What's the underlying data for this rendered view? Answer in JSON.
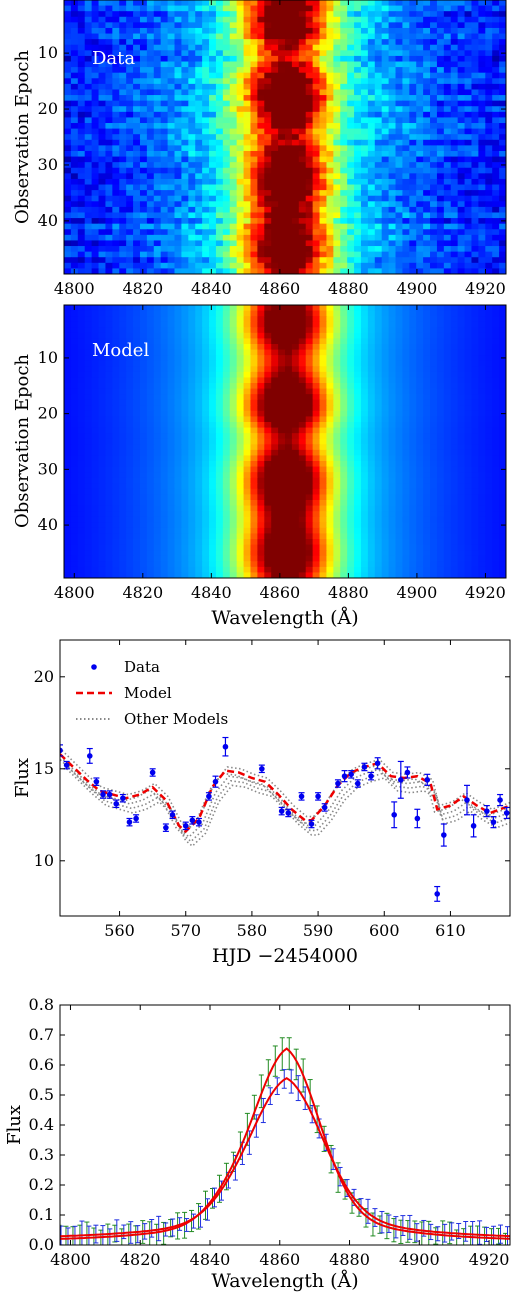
{
  "chart_data": [
    {
      "type": "heatmap",
      "panel_label": "Data",
      "xlim": [
        4797,
        4926
      ],
      "ylim": [
        49.5,
        0.5
      ],
      "xticks": [
        4800,
        4820,
        4840,
        4860,
        4880,
        4900,
        4920
      ],
      "yticks": [
        10,
        20,
        30,
        40
      ],
      "xlabel": "",
      "ylabel": "Observation Epoch",
      "colormap": "jet",
      "line_center": 4862,
      "line_width_core": 9,
      "line_width_wing": 30,
      "epochs": 49
    },
    {
      "type": "heatmap",
      "panel_label": "Model",
      "xlim": [
        4797,
        4926
      ],
      "ylim": [
        49.5,
        0.5
      ],
      "xticks": [
        4800,
        4820,
        4840,
        4860,
        4880,
        4900,
        4920
      ],
      "yticks": [
        10,
        20,
        30,
        40
      ],
      "xlabel": "Wavelength (Å)",
      "ylabel": "Observation Epoch",
      "colormap": "jet",
      "line_center": 4862,
      "line_width_core": 9,
      "line_width_wing": 30,
      "epochs": 49
    },
    {
      "type": "line",
      "xlabel": "HJD −2454000",
      "ylabel": "Flux",
      "xlim": [
        551,
        619
      ],
      "ylim": [
        7,
        22
      ],
      "xticks": [
        560,
        570,
        580,
        590,
        600,
        610
      ],
      "yticks": [
        10,
        15,
        20
      ],
      "legend": {
        "placement": "top-left",
        "entries": [
          {
            "label": "Data",
            "style": "point",
            "color": "#0000ee"
          },
          {
            "label": "Model",
            "style": "dashed",
            "color": "#ee0000"
          },
          {
            "label": "Other Models",
            "style": "dotted",
            "color": "#888888"
          }
        ]
      },
      "data_points": [
        {
          "x": 551,
          "y": 16.0,
          "err": 0.3
        },
        {
          "x": 552,
          "y": 15.2,
          "err": 0.2
        },
        {
          "x": 555.5,
          "y": 15.7,
          "err": 0.4
        },
        {
          "x": 556.5,
          "y": 14.3,
          "err": 0.2
        },
        {
          "x": 557.5,
          "y": 13.6,
          "err": 0.2
        },
        {
          "x": 558.5,
          "y": 13.6,
          "err": 0.2
        },
        {
          "x": 559.5,
          "y": 13.1,
          "err": 0.2
        },
        {
          "x": 560.5,
          "y": 13.4,
          "err": 0.2
        },
        {
          "x": 561.5,
          "y": 12.1,
          "err": 0.2
        },
        {
          "x": 562.5,
          "y": 12.3,
          "err": 0.2
        },
        {
          "x": 565,
          "y": 14.8,
          "err": 0.2
        },
        {
          "x": 567,
          "y": 11.8,
          "err": 0.2
        },
        {
          "x": 568,
          "y": 12.5,
          "err": 0.2
        },
        {
          "x": 570,
          "y": 11.9,
          "err": 0.2
        },
        {
          "x": 571,
          "y": 12.2,
          "err": 0.2
        },
        {
          "x": 572,
          "y": 12.1,
          "err": 0.2
        },
        {
          "x": 573.5,
          "y": 13.5,
          "err": 0.2
        },
        {
          "x": 574.5,
          "y": 14.3,
          "err": 0.3
        },
        {
          "x": 576,
          "y": 16.2,
          "err": 0.5
        },
        {
          "x": 581.5,
          "y": 15.0,
          "err": 0.2
        },
        {
          "x": 584.5,
          "y": 12.7,
          "err": 0.2
        },
        {
          "x": 585.5,
          "y": 12.6,
          "err": 0.2
        },
        {
          "x": 587.5,
          "y": 13.5,
          "err": 0.2
        },
        {
          "x": 589,
          "y": 12.0,
          "err": 0.2
        },
        {
          "x": 590,
          "y": 13.5,
          "err": 0.2
        },
        {
          "x": 591,
          "y": 12.9,
          "err": 0.2
        },
        {
          "x": 593,
          "y": 14.2,
          "err": 0.2
        },
        {
          "x": 594,
          "y": 14.6,
          "err": 0.3
        },
        {
          "x": 595,
          "y": 14.7,
          "err": 0.2
        },
        {
          "x": 596,
          "y": 14.2,
          "err": 0.2
        },
        {
          "x": 597,
          "y": 15.1,
          "err": 0.2
        },
        {
          "x": 598,
          "y": 14.6,
          "err": 0.2
        },
        {
          "x": 599,
          "y": 15.3,
          "err": 0.3
        },
        {
          "x": 601.5,
          "y": 12.5,
          "err": 0.7
        },
        {
          "x": 602.5,
          "y": 14.4,
          "err": 1.0
        },
        {
          "x": 603.5,
          "y": 14.8,
          "err": 0.3
        },
        {
          "x": 605,
          "y": 12.3,
          "err": 0.5
        },
        {
          "x": 606.5,
          "y": 14.4,
          "err": 0.3
        },
        {
          "x": 608,
          "y": 8.2,
          "err": 0.4
        },
        {
          "x": 609,
          "y": 11.4,
          "err": 0.6
        },
        {
          "x": 612.5,
          "y": 13.3,
          "err": 0.8
        },
        {
          "x": 613.5,
          "y": 11.9,
          "err": 0.6
        },
        {
          "x": 615.5,
          "y": 12.7,
          "err": 0.3
        },
        {
          "x": 616.5,
          "y": 12.1,
          "err": 0.3
        },
        {
          "x": 617.5,
          "y": 13.3,
          "err": 0.3
        },
        {
          "x": 618.5,
          "y": 12.6,
          "err": 0.3
        }
      ],
      "model_curve": {
        "x": [
          551,
          553,
          555,
          557,
          559,
          561,
          563,
          565,
          567,
          569,
          570,
          572,
          574,
          576,
          578,
          580,
          582,
          584,
          586,
          588,
          589,
          591,
          593,
          595,
          597,
          599,
          601,
          603,
          605,
          607,
          608,
          610,
          612,
          614,
          616,
          619
        ],
        "y": [
          15.8,
          15.1,
          14.4,
          13.8,
          13.6,
          13.4,
          13.6,
          14.0,
          13.3,
          11.9,
          11.6,
          12.3,
          14.0,
          14.9,
          14.8,
          14.5,
          14.3,
          13.6,
          12.8,
          12.2,
          12.2,
          13.0,
          14.1,
          14.8,
          15.1,
          15.3,
          14.6,
          14.5,
          14.6,
          14.2,
          12.8,
          13.0,
          13.5,
          13.0,
          12.6,
          13.0
        ]
      },
      "other_models": [
        {
          "dy": -0.3,
          "dx": 0.5
        },
        {
          "dy": -0.55,
          "dx": 0.8
        },
        {
          "dy": -0.8,
          "dx": 1.0
        },
        {
          "dy": -0.15,
          "dx": -0.4
        },
        {
          "dy": 0.2,
          "dx": 0.3
        }
      ]
    },
    {
      "type": "line",
      "xlabel": "Wavelength (Å)",
      "ylabel": "Flux",
      "xlim": [
        4797,
        4926
      ],
      "ylim": [
        0.0,
        0.8
      ],
      "xticks": [
        4800,
        4820,
        4840,
        4860,
        4880,
        4900,
        4920
      ],
      "yticks": [
        0.0,
        0.1,
        0.2,
        0.3,
        0.4,
        0.5,
        0.6,
        0.7,
        0.8
      ],
      "line_center": 4862,
      "spectrum_step": 2,
      "series": [
        {
          "color": "#228b22",
          "model_color": "#ee0000",
          "peak": 0.64,
          "core_width": 9.5,
          "wing_amp": 0.16,
          "wing_width": 22,
          "shoulder_amp": 0.05,
          "shoulder_center": 4845,
          "continuum": 0.012,
          "err_base": 0.025,
          "err_scale": 0.08
        },
        {
          "color": "#1f2fe0",
          "model_color": "#ee0000",
          "peak": 0.535,
          "core_width": 10.5,
          "wing_amp": 0.14,
          "wing_width": 24,
          "shoulder_amp": 0.02,
          "shoulder_center": 4845,
          "continuum": 0.02,
          "err_base": 0.02,
          "err_scale": 0.04
        }
      ]
    }
  ]
}
